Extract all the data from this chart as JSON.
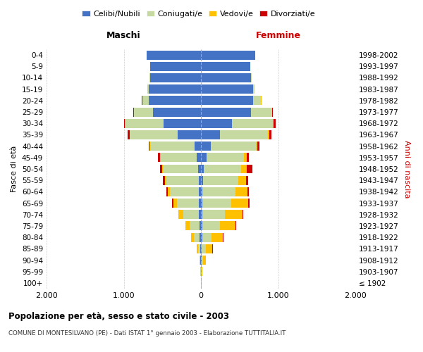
{
  "age_groups": [
    "100+",
    "95-99",
    "90-94",
    "85-89",
    "80-84",
    "75-79",
    "70-74",
    "65-69",
    "60-64",
    "55-59",
    "50-54",
    "45-49",
    "40-44",
    "35-39",
    "30-34",
    "25-29",
    "20-24",
    "15-19",
    "10-14",
    "5-9",
    "0-4"
  ],
  "birth_years": [
    "≤ 1902",
    "1903-1907",
    "1908-1912",
    "1913-1917",
    "1918-1922",
    "1923-1927",
    "1928-1932",
    "1933-1937",
    "1938-1942",
    "1943-1947",
    "1948-1952",
    "1953-1957",
    "1958-1962",
    "1963-1967",
    "1968-1972",
    "1973-1977",
    "1978-1982",
    "1983-1987",
    "1988-1992",
    "1993-1997",
    "1998-2002"
  ],
  "maschi_celibe": [
    2,
    3,
    5,
    8,
    15,
    20,
    30,
    30,
    30,
    30,
    40,
    55,
    80,
    300,
    480,
    620,
    680,
    680,
    660,
    660,
    700
  ],
  "maschi_coniugato": [
    2,
    5,
    12,
    30,
    80,
    130,
    200,
    280,
    370,
    420,
    450,
    470,
    580,
    620,
    500,
    250,
    80,
    10,
    5,
    2,
    2
  ],
  "maschi_vedovo": [
    0,
    2,
    5,
    15,
    30,
    50,
    60,
    50,
    30,
    20,
    15,
    8,
    5,
    3,
    2,
    2,
    1,
    0,
    0,
    0,
    0
  ],
  "maschi_divorziato": [
    0,
    0,
    0,
    0,
    2,
    3,
    5,
    15,
    20,
    25,
    25,
    20,
    15,
    30,
    10,
    5,
    2,
    0,
    0,
    0,
    0
  ],
  "femmine_celibe": [
    2,
    3,
    5,
    10,
    15,
    15,
    15,
    15,
    20,
    25,
    40,
    70,
    130,
    250,
    400,
    650,
    680,
    680,
    650,
    640,
    700
  ],
  "femmine_coniugato": [
    2,
    5,
    20,
    50,
    120,
    230,
    300,
    380,
    430,
    460,
    480,
    490,
    580,
    620,
    530,
    270,
    100,
    15,
    5,
    2,
    2
  ],
  "femmine_vedovo": [
    2,
    10,
    40,
    90,
    150,
    200,
    220,
    220,
    150,
    100,
    70,
    30,
    20,
    15,
    10,
    5,
    2,
    1,
    0,
    0,
    0
  ],
  "femmine_divorziato": [
    0,
    0,
    2,
    3,
    5,
    8,
    10,
    15,
    25,
    25,
    80,
    30,
    30,
    30,
    25,
    10,
    3,
    1,
    0,
    0,
    0
  ],
  "colors": {
    "celibe": "#4472c4",
    "coniugato": "#c5d9a0",
    "vedovo": "#ffc000",
    "divorziato": "#cc0000"
  },
  "title": "Popolazione per età, sesso e stato civile - 2003",
  "subtitle": "COMUNE DI MONTESILVANO (PE) - Dati ISTAT 1° gennaio 2003 - Elaborazione TUTTITALIA.IT",
  "xlabel_left": "Maschi",
  "xlabel_right": "Femmine",
  "ylabel_left": "Fasce di età",
  "ylabel_right": "Anni di nascita",
  "xlim": 2000,
  "xticks": [
    -2000,
    -1000,
    0,
    1000,
    2000
  ],
  "xticklabels": [
    "2.000",
    "1.000",
    "0",
    "1.000",
    "2.000"
  ],
  "legend_labels": [
    "Celibi/Nubili",
    "Coniugati/e",
    "Vedovi/e",
    "Divorziati/e"
  ],
  "background_color": "#ffffff",
  "grid_color": "#cccccc",
  "femmine_color": "#cc0000"
}
